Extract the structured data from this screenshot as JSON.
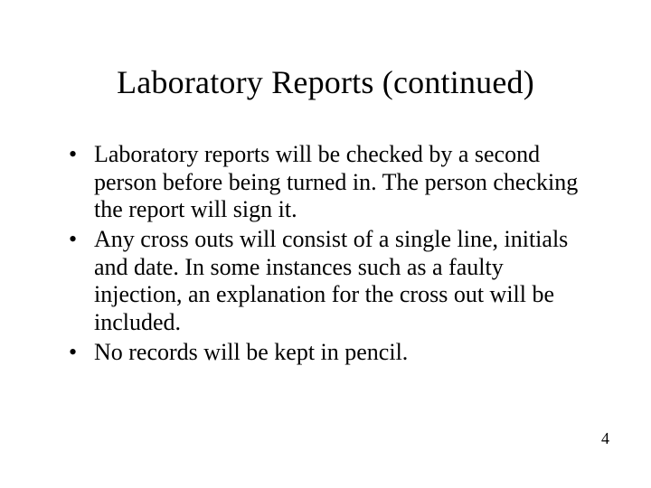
{
  "slide": {
    "title": "Laboratory Reports (continued)",
    "bullets": [
      "Laboratory reports will be checked by a second person before being turned in.  The person checking the report will sign it.",
      "Any cross outs will consist of a single line, initials and date.  In some instances such as a faulty injection, an explanation for the cross out will be included.",
      "No records will be kept in pencil."
    ],
    "page_number": "4",
    "style": {
      "background_color": "#ffffff",
      "text_color": "#000000",
      "title_fontsize": 36,
      "body_fontsize": 26,
      "page_number_fontsize": 18,
      "font_family": "Times New Roman"
    }
  }
}
